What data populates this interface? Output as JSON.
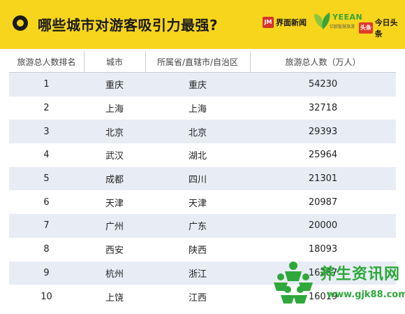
{
  "header": {
    "title": "哪些城市对游客吸引力最强?",
    "logos": [
      {
        "mark": "JM",
        "text": "界面新闻"
      },
      {
        "mark": "",
        "text": "YEEAN",
        "sub": "亿欧智慧旅游"
      },
      {
        "mark": "头条",
        "text": "今日头条"
      }
    ]
  },
  "table": {
    "columns": [
      "旅游总人数排名",
      "城市",
      "所属省/直辖市/自治区",
      "旅游总人数（万人）"
    ],
    "rows": [
      [
        "1",
        "重庆",
        "重庆",
        "54230"
      ],
      [
        "2",
        "上海",
        "上海",
        "32718"
      ],
      [
        "3",
        "北京",
        "北京",
        "29393"
      ],
      [
        "4",
        "武汉",
        "湖北",
        "25964"
      ],
      [
        "5",
        "成都",
        "四川",
        "21301"
      ],
      [
        "6",
        "天津",
        "天津",
        "20987"
      ],
      [
        "7",
        "广州",
        "广东",
        "20000"
      ],
      [
        "8",
        "西安",
        "陕西",
        "18093"
      ],
      [
        "9",
        "杭州",
        "浙江",
        "16287"
      ],
      [
        "10",
        "上饶",
        "江西",
        "16019"
      ]
    ]
  },
  "watermark": {
    "title": "养生资讯网",
    "url": "www.gjk88.com"
  }
}
